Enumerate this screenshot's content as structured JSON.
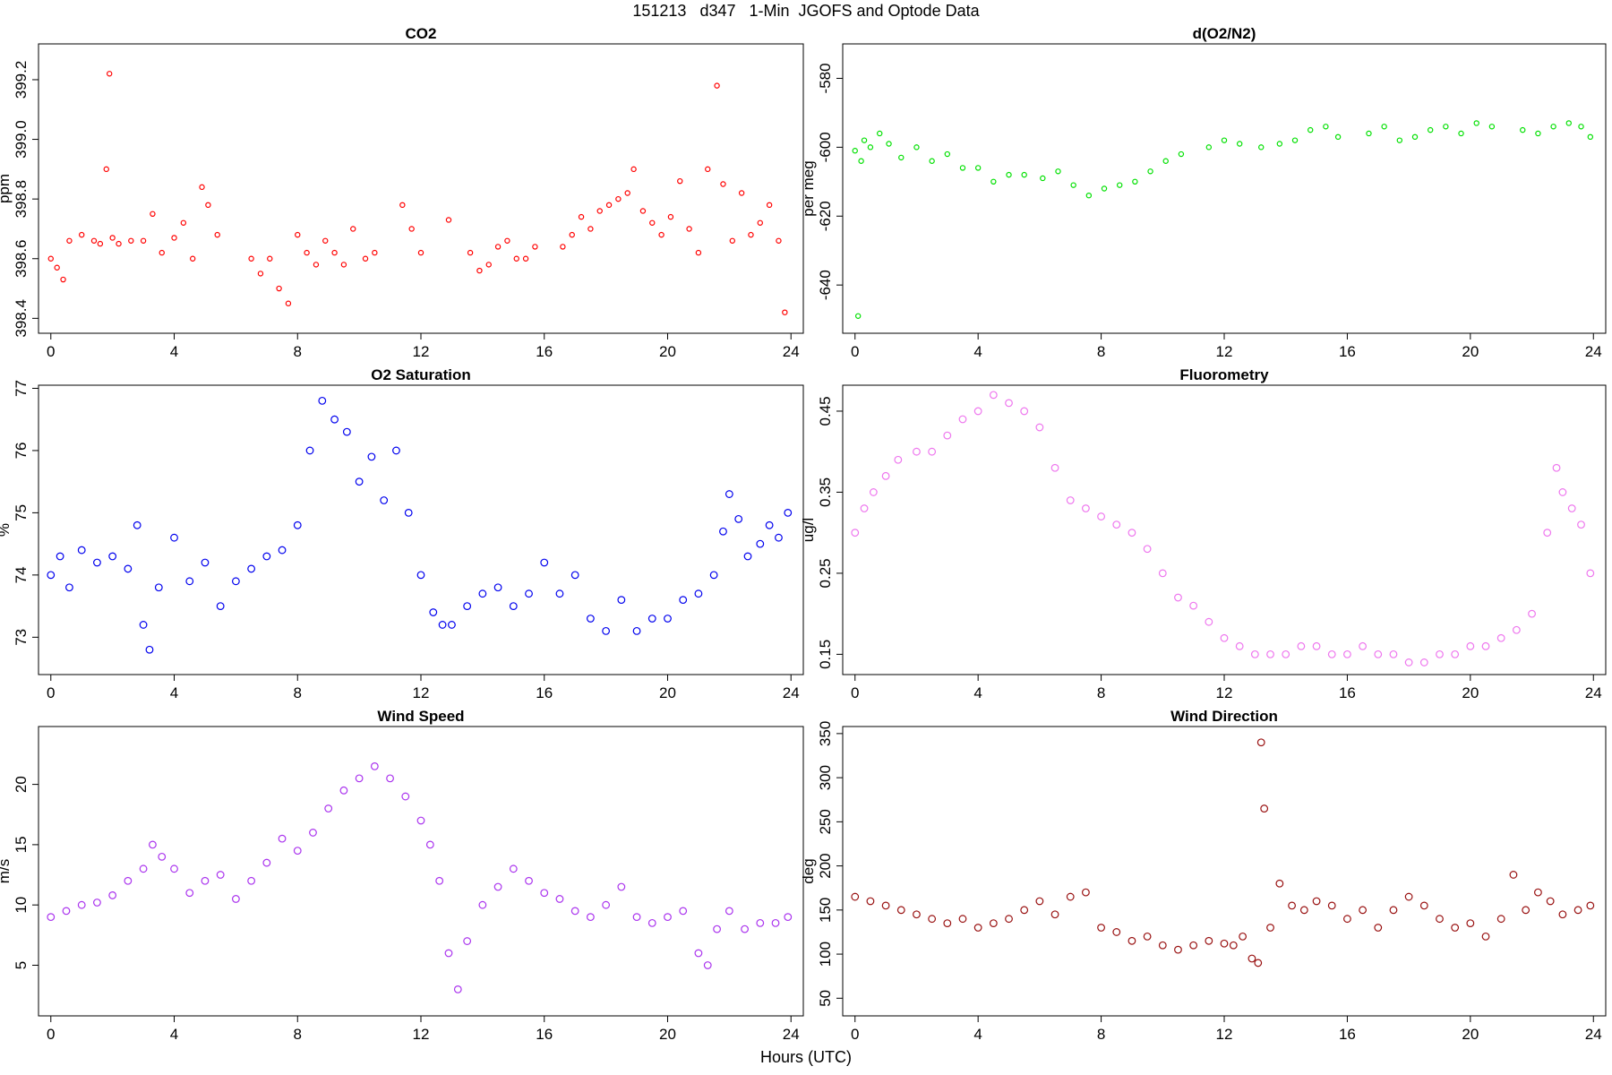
{
  "header": {
    "title": "151213   d347   1-Min  JGOFS and Optode Data"
  },
  "footer": {
    "xlabel": "Hours (UTC)"
  },
  "chart_data": [
    {
      "type": "scatter",
      "title": "CO2",
      "ylabel": "ppm",
      "color": "#ff0000",
      "xlim": [
        -0.4,
        24.4
      ],
      "ylim": [
        398.35,
        399.32
      ],
      "xticks": [
        0,
        4,
        8,
        12,
        16,
        20,
        24
      ],
      "yticks": [
        398.4,
        398.6,
        398.8,
        399.0,
        399.2
      ],
      "ytick_labels": [
        "398.4",
        "398.6",
        "398.8",
        "399.0",
        "399.2"
      ],
      "series": [
        {
          "x": [
            0.0,
            0.2,
            0.4,
            0.6,
            1.0,
            1.4,
            1.6,
            1.8,
            1.9,
            2.0,
            2.2,
            2.6,
            3.0,
            3.3,
            3.6,
            4.0,
            4.3,
            4.6,
            4.9,
            5.1,
            5.4,
            6.5,
            6.8,
            7.1,
            7.4,
            7.7,
            8.0,
            8.3,
            8.6,
            8.9,
            9.2,
            9.5,
            9.8,
            10.2,
            10.5,
            11.4,
            11.7,
            12.0,
            12.9,
            13.6,
            13.9,
            14.2,
            14.5,
            14.8,
            15.1,
            15.4,
            15.7,
            16.6,
            16.9,
            17.2,
            17.5,
            17.8,
            18.1,
            18.4,
            18.7,
            18.9,
            19.2,
            19.5,
            19.8,
            20.1,
            20.4,
            20.7,
            21.0,
            21.3,
            21.6,
            21.8,
            22.1,
            22.4,
            22.7,
            23.0,
            23.3,
            23.6,
            23.8
          ],
          "y": [
            398.6,
            398.57,
            398.53,
            398.66,
            398.68,
            398.66,
            398.65,
            398.9,
            399.22,
            398.67,
            398.65,
            398.66,
            398.66,
            398.75,
            398.62,
            398.67,
            398.72,
            398.6,
            398.84,
            398.78,
            398.68,
            398.6,
            398.55,
            398.6,
            398.5,
            398.45,
            398.68,
            398.62,
            398.58,
            398.66,
            398.62,
            398.58,
            398.7,
            398.6,
            398.62,
            398.78,
            398.7,
            398.62,
            398.73,
            398.62,
            398.56,
            398.58,
            398.64,
            398.66,
            398.6,
            398.6,
            398.64,
            398.64,
            398.68,
            398.74,
            398.7,
            398.76,
            398.78,
            398.8,
            398.82,
            398.9,
            398.76,
            398.72,
            398.68,
            398.74,
            398.86,
            398.7,
            398.62,
            398.9,
            399.18,
            398.85,
            398.66,
            398.82,
            398.68,
            398.72,
            398.78,
            398.66,
            398.42
          ]
        }
      ]
    },
    {
      "type": "scatter",
      "title": "d(O2/N2)",
      "ylabel": "per meg",
      "color": "#00e000",
      "xlim": [
        -0.4,
        24.4
      ],
      "ylim": [
        -654,
        -570
      ],
      "xticks": [
        0,
        4,
        8,
        12,
        16,
        20,
        24
      ],
      "yticks": [
        -640,
        -620,
        -600,
        -580
      ],
      "ytick_labels": [
        "-640",
        "-620",
        "-600",
        "-580"
      ],
      "series": [
        {
          "x": [
            0.0,
            0.1,
            0.2,
            0.3,
            0.5,
            0.8,
            1.1,
            1.5,
            2.0,
            2.5,
            3.0,
            3.5,
            4.0,
            4.5,
            5.0,
            5.5,
            6.1,
            6.6,
            7.1,
            7.6,
            8.1,
            8.6,
            9.1,
            9.6,
            10.1,
            10.6,
            11.5,
            12.0,
            12.5,
            13.2,
            13.8,
            14.3,
            14.8,
            15.3,
            15.7,
            16.7,
            17.2,
            17.7,
            18.2,
            18.7,
            19.2,
            19.7,
            20.2,
            20.7,
            21.7,
            22.2,
            22.7,
            23.2,
            23.6,
            23.9
          ],
          "y": [
            -601,
            -649,
            -604,
            -598,
            -600,
            -596,
            -599,
            -603,
            -600,
            -604,
            -602,
            -606,
            -606,
            -610,
            -608,
            -608,
            -609,
            -607,
            -611,
            -614,
            -612,
            -611,
            -610,
            -607,
            -604,
            -602,
            -600,
            -598,
            -599,
            -600,
            -599,
            -598,
            -595,
            -594,
            -597,
            -596,
            -594,
            -598,
            -597,
            -595,
            -594,
            -596,
            -593,
            -594,
            -595,
            -596,
            -594,
            -593,
            -594,
            -597
          ]
        }
      ]
    },
    {
      "type": "scatter",
      "title": "O2 Saturation",
      "ylabel": "%",
      "color": "#0000ee",
      "xlim": [
        -0.4,
        24.4
      ],
      "ylim": [
        72.4,
        77.05
      ],
      "xticks": [
        0,
        4,
        8,
        12,
        16,
        20,
        24
      ],
      "yticks": [
        73,
        74,
        75,
        76,
        77
      ],
      "ytick_labels": [
        "73",
        "74",
        "75",
        "76",
        "77"
      ],
      "series": [
        {
          "x": [
            0.0,
            0.3,
            0.6,
            1.0,
            1.5,
            2.0,
            2.5,
            2.8,
            3.0,
            3.2,
            3.5,
            4.0,
            4.5,
            5.0,
            5.5,
            6.0,
            6.5,
            7.0,
            7.5,
            8.0,
            8.4,
            8.8,
            9.2,
            9.6,
            10.0,
            10.4,
            10.8,
            11.2,
            11.6,
            12.0,
            12.4,
            12.7,
            13.0,
            13.5,
            14.0,
            14.5,
            15.0,
            15.5,
            16.0,
            16.5,
            17.0,
            17.5,
            18.0,
            18.5,
            19.0,
            19.5,
            20.0,
            20.5,
            21.0,
            21.5,
            21.8,
            22.0,
            22.3,
            22.6,
            23.0,
            23.3,
            23.6,
            23.9
          ],
          "y": [
            74.0,
            74.3,
            73.8,
            74.4,
            74.2,
            74.3,
            74.1,
            74.8,
            73.2,
            72.8,
            73.8,
            74.6,
            73.9,
            74.2,
            73.5,
            73.9,
            74.1,
            74.3,
            74.4,
            74.8,
            76.0,
            76.8,
            76.5,
            76.3,
            75.5,
            75.9,
            75.2,
            76.0,
            75.0,
            74.0,
            73.4,
            73.2,
            73.2,
            73.5,
            73.7,
            73.8,
            73.5,
            73.7,
            74.2,
            73.7,
            74.0,
            73.3,
            73.1,
            73.6,
            73.1,
            73.3,
            73.3,
            73.6,
            73.7,
            74.0,
            74.7,
            75.3,
            74.9,
            74.3,
            74.5,
            74.8,
            74.6,
            75.0
          ]
        }
      ]
    },
    {
      "type": "scatter",
      "title": "Fluorometry",
      "ylabel": "ug/l",
      "color": "#ee77ee",
      "xlim": [
        -0.4,
        24.4
      ],
      "ylim": [
        0.125,
        0.482
      ],
      "xticks": [
        0,
        4,
        8,
        12,
        16,
        20,
        24
      ],
      "yticks": [
        0.15,
        0.25,
        0.35,
        0.45
      ],
      "ytick_labels": [
        "0.15",
        "0.25",
        "0.35",
        "0.45"
      ],
      "series": [
        {
          "x": [
            0.0,
            0.3,
            0.6,
            1.0,
            1.4,
            2.0,
            2.5,
            3.0,
            3.5,
            4.0,
            4.5,
            5.0,
            5.5,
            6.0,
            6.5,
            7.0,
            7.5,
            8.0,
            8.5,
            9.0,
            9.5,
            10.0,
            10.5,
            11.0,
            11.5,
            12.0,
            12.5,
            13.0,
            13.5,
            14.0,
            14.5,
            15.0,
            15.5,
            16.0,
            16.5,
            17.0,
            17.5,
            18.0,
            18.5,
            19.0,
            19.5,
            20.0,
            20.5,
            21.0,
            21.5,
            22.0,
            22.5,
            22.8,
            23.0,
            23.3,
            23.6,
            23.9
          ],
          "y": [
            0.3,
            0.33,
            0.35,
            0.37,
            0.39,
            0.4,
            0.4,
            0.42,
            0.44,
            0.45,
            0.47,
            0.46,
            0.45,
            0.43,
            0.38,
            0.34,
            0.33,
            0.32,
            0.31,
            0.3,
            0.28,
            0.25,
            0.22,
            0.21,
            0.19,
            0.17,
            0.16,
            0.15,
            0.15,
            0.15,
            0.16,
            0.16,
            0.15,
            0.15,
            0.16,
            0.15,
            0.15,
            0.14,
            0.14,
            0.15,
            0.15,
            0.16,
            0.16,
            0.17,
            0.18,
            0.2,
            0.3,
            0.38,
            0.35,
            0.33,
            0.31,
            0.25
          ]
        }
      ]
    },
    {
      "type": "scatter",
      "title": "Wind Speed",
      "ylabel": "m/s",
      "color": "#aa33ee",
      "xlim": [
        -0.4,
        24.4
      ],
      "ylim": [
        0.8,
        24.8
      ],
      "xticks": [
        0,
        4,
        8,
        12,
        16,
        20,
        24
      ],
      "yticks": [
        5,
        10,
        15,
        20
      ],
      "ytick_labels": [
        "5",
        "10",
        "15",
        "20"
      ],
      "series": [
        {
          "x": [
            0.0,
            0.5,
            1.0,
            1.5,
            2.0,
            2.5,
            3.0,
            3.3,
            3.6,
            4.0,
            4.5,
            5.0,
            5.5,
            6.0,
            6.5,
            7.0,
            7.5,
            8.0,
            8.5,
            9.0,
            9.5,
            10.0,
            10.5,
            11.0,
            11.5,
            12.0,
            12.3,
            12.6,
            12.9,
            13.2,
            13.5,
            14.0,
            14.5,
            15.0,
            15.5,
            16.0,
            16.5,
            17.0,
            17.5,
            18.0,
            18.5,
            19.0,
            19.5,
            20.0,
            20.5,
            21.0,
            21.3,
            21.6,
            22.0,
            22.5,
            23.0,
            23.5,
            23.9
          ],
          "y": [
            9.0,
            9.5,
            10.0,
            10.2,
            10.8,
            12.0,
            13.0,
            15.0,
            14.0,
            13.0,
            11.0,
            12.0,
            12.5,
            10.5,
            12.0,
            13.5,
            15.5,
            14.5,
            16.0,
            18.0,
            19.5,
            20.5,
            21.5,
            20.5,
            19.0,
            17.0,
            15.0,
            12.0,
            6.0,
            3.0,
            7.0,
            10.0,
            11.5,
            13.0,
            12.0,
            11.0,
            10.5,
            9.5,
            9.0,
            10.0,
            11.5,
            9.0,
            8.5,
            9.0,
            9.5,
            6.0,
            5.0,
            8.0,
            9.5,
            8.0,
            8.5,
            8.5,
            9.0
          ]
        }
      ]
    },
    {
      "type": "scatter",
      "title": "Wind Direction",
      "ylabel": "deg",
      "color": "#991111",
      "xlim": [
        -0.4,
        24.4
      ],
      "ylim": [
        30,
        358
      ],
      "xticks": [
        0,
        4,
        8,
        12,
        16,
        20,
        24
      ],
      "yticks": [
        50,
        100,
        150,
        200,
        250,
        300,
        350
      ],
      "ytick_labels": [
        "50",
        "100",
        "150",
        "200",
        "250",
        "300",
        "350"
      ],
      "series": [
        {
          "x": [
            0.0,
            0.5,
            1.0,
            1.5,
            2.0,
            2.5,
            3.0,
            3.5,
            4.0,
            4.5,
            5.0,
            5.5,
            6.0,
            6.5,
            7.0,
            7.5,
            8.0,
            8.5,
            9.0,
            9.5,
            10.0,
            10.5,
            11.0,
            11.5,
            12.0,
            12.3,
            12.6,
            12.9,
            13.1,
            13.2,
            13.3,
            13.5,
            13.8,
            14.2,
            14.6,
            15.0,
            15.5,
            16.0,
            16.5,
            17.0,
            17.5,
            18.0,
            18.5,
            19.0,
            19.5,
            20.0,
            20.5,
            21.0,
            21.4,
            21.8,
            22.2,
            22.6,
            23.0,
            23.5,
            23.9
          ],
          "y": [
            165,
            160,
            155,
            150,
            145,
            140,
            135,
            140,
            130,
            135,
            140,
            150,
            160,
            145,
            165,
            170,
            130,
            125,
            115,
            120,
            110,
            105,
            110,
            115,
            112,
            110,
            120,
            95,
            90,
            340,
            265,
            130,
            180,
            155,
            150,
            160,
            155,
            140,
            150,
            130,
            150,
            165,
            155,
            140,
            130,
            135,
            120,
            140,
            190,
            150,
            170,
            160,
            145,
            150,
            155
          ]
        }
      ]
    }
  ]
}
